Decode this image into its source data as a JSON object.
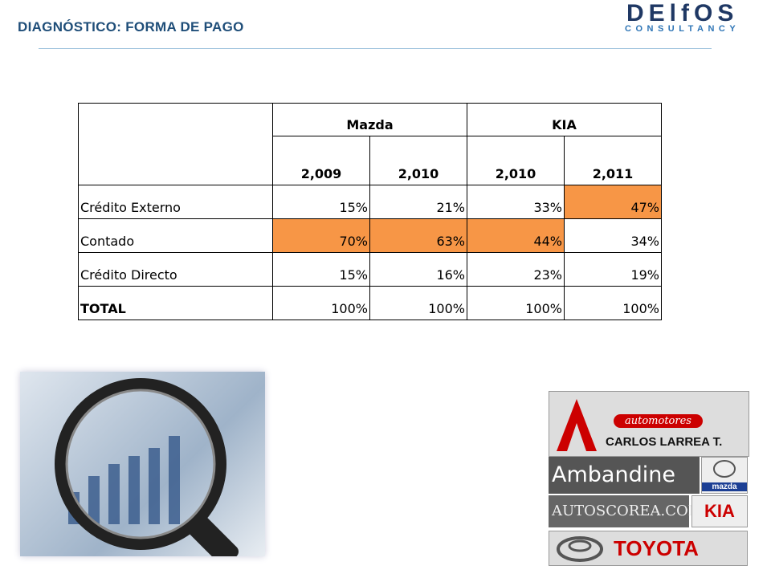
{
  "header": {
    "title": "DIAGNÓSTICO: FORMA DE PAGO",
    "logo_main": "DElfOS",
    "logo_sub": "CONSULTANCY"
  },
  "table": {
    "groups": [
      "Mazda",
      "KIA"
    ],
    "years": [
      "2,009",
      "2,010",
      "2,010",
      "2,011"
    ],
    "rows": [
      [
        "Crédito Externo",
        "15%",
        "21%",
        "33%",
        "47%"
      ],
      [
        "Contado",
        "70%",
        "63%",
        "44%",
        "34%"
      ],
      [
        "Crédito Directo",
        "15%",
        "16%",
        "23%",
        "19%"
      ],
      [
        "TOTAL",
        "100%",
        "100%",
        "100%",
        "100%"
      ]
    ],
    "highlighted": [
      [
        false,
        false,
        false,
        false,
        true
      ],
      [
        false,
        true,
        true,
        true,
        false
      ],
      [
        false,
        false,
        false,
        false,
        false
      ],
      [
        false,
        false,
        false,
        false,
        false
      ]
    ],
    "highlight_color": "#f79646"
  },
  "logos": {
    "automotores": "automotores",
    "carlos": "CARLOS LARREA T.",
    "ambandine": "Ambandine S.A.",
    "mazda": "mazda",
    "autoscorea": "AUTOSCOREA.COM",
    "kia": "KIA",
    "toyota": "TOYOTA"
  }
}
